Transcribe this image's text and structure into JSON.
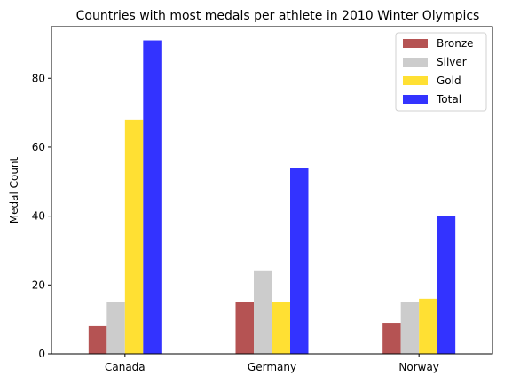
{
  "chart_data": {
    "type": "bar",
    "title": "Countries with most medals per athlete in 2010 Winter Olympics",
    "xlabel": "",
    "ylabel": "Medal Count",
    "categories": [
      "Canada",
      "Germany",
      "Norway"
    ],
    "series": [
      {
        "name": "Bronze",
        "values": [
          8,
          15,
          9
        ],
        "color": "#b55353"
      },
      {
        "name": "Silver",
        "values": [
          15,
          24,
          15
        ],
        "color": "#cccccc"
      },
      {
        "name": "Gold",
        "values": [
          68,
          15,
          16
        ],
        "color": "#ffe033"
      },
      {
        "name": "Total",
        "values": [
          91,
          54,
          40
        ],
        "color": "#3333ff"
      }
    ],
    "ylim": [
      0,
      95
    ],
    "yticks": [
      0,
      20,
      40,
      60,
      80
    ],
    "grid": false,
    "legend_position": "top-right"
  }
}
